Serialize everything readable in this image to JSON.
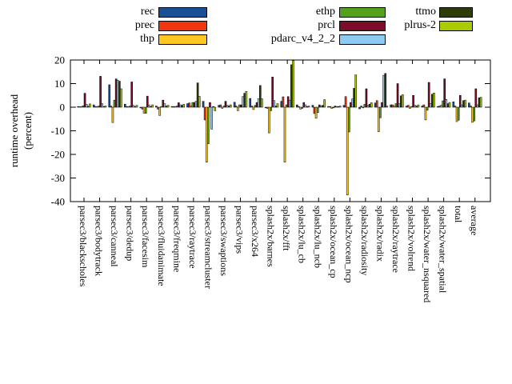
{
  "page": {
    "background": "#ffffff"
  },
  "y_axis": {
    "title_lines": [
      "runtime overhead",
      "(percent)"
    ],
    "tick_labels": [
      "20",
      "10",
      "0",
      "-10",
      "-20",
      "-30",
      "-40"
    ]
  },
  "legend": {
    "columns": [
      {
        "entries": [
          {
            "label": "rec",
            "color": "#1a4f96"
          },
          {
            "label": "prec",
            "color": "#f1360f"
          },
          {
            "label": "thp",
            "color": "#fdc620"
          }
        ]
      },
      {
        "entries": [
          {
            "label": "ethp",
            "color": "#57a01e"
          },
          {
            "label": "prcl",
            "color": "#7c0c28"
          },
          {
            "label": "pdarc_v4_2_2",
            "color": "#8ecbf2"
          }
        ]
      },
      {
        "entries": [
          {
            "label": "ttmo",
            "color": "#2e3d07"
          },
          {
            "label": "plrus-2",
            "color": "#a9cc00"
          }
        ]
      }
    ]
  },
  "chart_data": {
    "type": "bar",
    "title": "",
    "xlabel": "",
    "ylabel": "runtime overhead (percent)",
    "ylim": [
      -40,
      20
    ],
    "yticks": [
      20,
      10,
      0,
      -10,
      -20,
      -30,
      -40
    ],
    "grid": false,
    "legend_position": "top",
    "bar_outline": "#000000",
    "categories": [
      "parsec3/blackscholes",
      "parsec3/bodytrack",
      "parsec3/canneal",
      "parsec3/dedup",
      "parsec3/facesim",
      "parsec3/fluidanimate",
      "parsec3/freqmine",
      "parsec3/raytrace",
      "parsec3/streamcluster",
      "parsec3/swaptions",
      "parsec3/vips",
      "parsec3/x264",
      "splash2x/barnes",
      "splash2x/fft",
      "splash2x/lu_cb",
      "splash2x/lu_ncb",
      "splash2x/ocean_cp",
      "splash2x/ocean_ncp",
      "splash2x/radiosity",
      "splash2x/radix",
      "splash2x/raytrace",
      "splash2x/volrend",
      "splash2x/water_nsquared",
      "splash2x/water_spatial",
      "total",
      "average"
    ],
    "series": [
      {
        "name": "rec",
        "color": "#1a4f96",
        "values": [
          0.3,
          1.0,
          9.5,
          1.3,
          -0.3,
          0.5,
          0.3,
          1.5,
          2.5,
          0.8,
          2.1,
          3.7,
          -0.3,
          2.5,
          1.0,
          0.8,
          0.3,
          0.8,
          -0.7,
          1.8,
          1.0,
          0.5,
          0.5,
          0.3,
          2.3,
          1.8
        ]
      },
      {
        "name": "prec",
        "color": "#f1360f",
        "values": [
          0.2,
          0.3,
          0.5,
          0.3,
          -0.8,
          -0.8,
          0.3,
          1.8,
          -5.4,
          1.0,
          0.5,
          0.5,
          -0.5,
          4.4,
          0.3,
          -2.7,
          0.3,
          4.5,
          0.5,
          2.8,
          1.0,
          0.8,
          1.0,
          0.5,
          0.5,
          0.5
        ]
      },
      {
        "name": "thp",
        "color": "#fdc620",
        "values": [
          0.3,
          0.3,
          -6.5,
          0.3,
          -2.5,
          -3.5,
          0.3,
          0.5,
          -23.3,
          -0.5,
          -1.5,
          -1.0,
          -10.9,
          -23.3,
          -0.8,
          -4.7,
          -0.5,
          -37.2,
          -0.3,
          -10.4,
          0.5,
          -0.5,
          -5.4,
          0.8,
          -6.1,
          -6.4
        ]
      },
      {
        "name": "ethp",
        "color": "#57a01e",
        "values": [
          0.6,
          0.5,
          3.0,
          0.5,
          -2.6,
          0.3,
          0.5,
          2.0,
          -15.5,
          0.5,
          1.0,
          0.8,
          -1.5,
          1.0,
          -0.5,
          -2.3,
          -0.3,
          -10.5,
          1.2,
          -4.5,
          1.5,
          0.3,
          -1.3,
          2.7,
          -5.5,
          -5.8
        ]
      },
      {
        "name": "prcl",
        "color": "#7c0c28",
        "values": [
          5.9,
          13.1,
          12.0,
          10.7,
          4.7,
          3.0,
          1.9,
          2.0,
          2.0,
          2.5,
          1.0,
          2.0,
          12.8,
          4.5,
          2.0,
          1.0,
          0.5,
          2.0,
          7.8,
          2.0,
          10.0,
          5.0,
          10.5,
          12.0,
          5.0,
          7.8
        ]
      },
      {
        "name": "pdarc_v4_2_2",
        "color": "#8ecbf2",
        "values": [
          1.2,
          1.5,
          11.4,
          0.8,
          1.0,
          1.5,
          1.0,
          2.5,
          -9.3,
          0.8,
          4.5,
          3.6,
          2.8,
          3.0,
          1.0,
          0.5,
          0.3,
          3.5,
          0.8,
          13.5,
          1.5,
          0.8,
          1.5,
          3.3,
          1.0,
          1.0
        ]
      },
      {
        "name": "ttmo",
        "color": "#2e3d07",
        "values": [
          0.4,
          0.3,
          11.0,
          0.3,
          0.3,
          0.5,
          0.8,
          10.3,
          0.3,
          0.5,
          5.9,
          9.2,
          0.5,
          18.0,
          0.3,
          0.8,
          0.3,
          8.0,
          1.3,
          14.3,
          4.8,
          0.5,
          5.5,
          1.5,
          2.8,
          4.0
        ]
      },
      {
        "name": "plrus-2",
        "color": "#a9cc00",
        "values": [
          1.4,
          0.5,
          7.8,
          0.8,
          1.0,
          0.8,
          1.2,
          4.6,
          -1.5,
          1.0,
          6.7,
          3.6,
          1.5,
          19.8,
          0.5,
          3.2,
          0.5,
          13.7,
          1.9,
          0.5,
          5.3,
          1.0,
          6.0,
          2.0,
          3.0,
          4.2
        ]
      }
    ]
  }
}
